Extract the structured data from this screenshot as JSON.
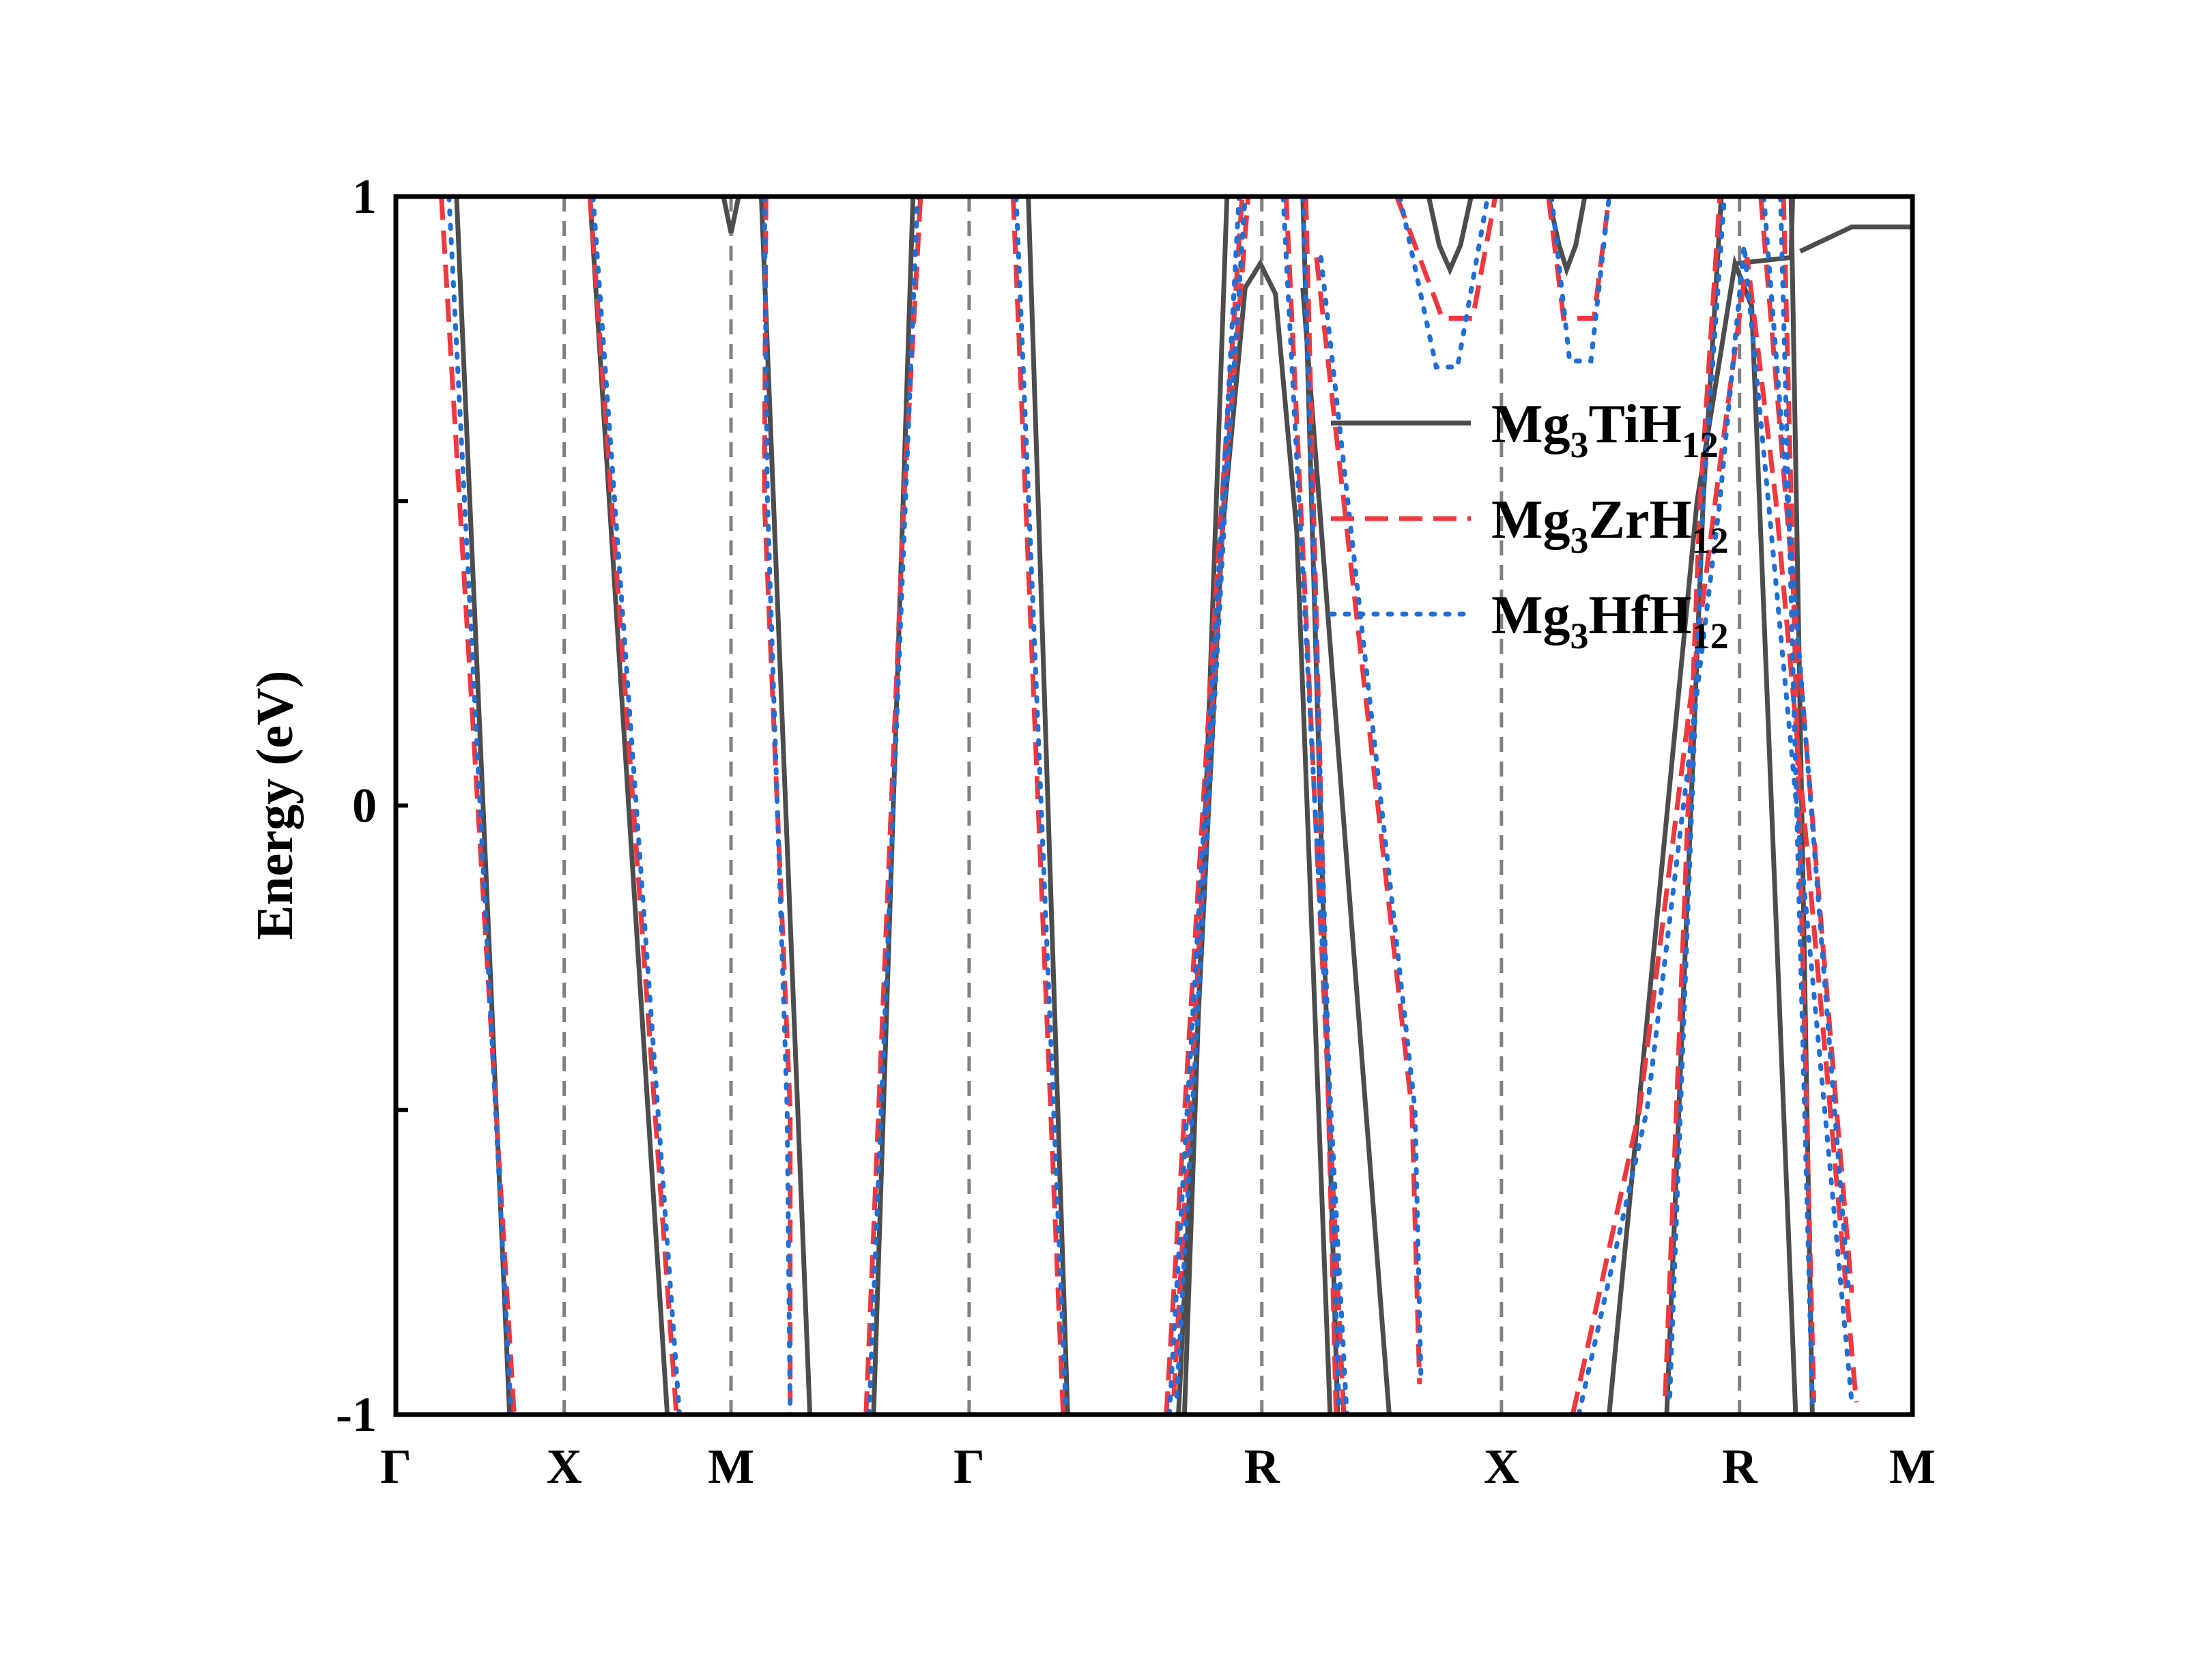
{
  "chart_data": {
    "type": "line",
    "ylabel": "Energy (eV)",
    "ylim": [
      -1,
      1
    ],
    "y_ticks": [
      {
        "value": 1,
        "label": "1"
      },
      {
        "value": 0.5,
        "label": ""
      },
      {
        "value": 0,
        "label": "0"
      },
      {
        "value": -0.5,
        "label": ""
      },
      {
        "value": -1,
        "label": "-1"
      }
    ],
    "xlim": [
      0,
      1
    ],
    "high_symmetry_points": [
      {
        "label": "Γ",
        "x": 0.0
      },
      {
        "label": "X",
        "x": 0.111
      },
      {
        "label": "M",
        "x": 0.221
      },
      {
        "label": "Γ",
        "x": 0.378
      },
      {
        "label": "R",
        "x": 0.571
      },
      {
        "label": "X",
        "x": 0.729
      },
      {
        "label": "R",
        "x": 0.886
      },
      {
        "label": "M",
        "x": 1.0
      }
    ],
    "legend_position": "top-right",
    "series": [
      {
        "name": "Mg3TiH12",
        "name_parts": [
          "Mg",
          "3",
          "TiH",
          "12"
        ],
        "color": "#4d4d4d",
        "style": "solid",
        "bands": [
          [
            [
              0.04,
              1.0
            ],
            [
              0.075,
              -1.0
            ]
          ],
          [
            [
              0.128,
              1.0
            ],
            [
              0.179,
              -1.0
            ]
          ],
          [
            [
              0.241,
              1.0
            ],
            [
              0.273,
              -1.0
            ]
          ],
          [
            [
              0.315,
              -1.0
            ],
            [
              0.341,
              1.0
            ]
          ],
          [
            [
              0.417,
              1.0
            ],
            [
              0.443,
              -1.0
            ]
          ],
          [
            [
              0.216,
              1.0
            ],
            [
              0.221,
              0.94
            ],
            [
              0.226,
              1.0
            ]
          ],
          [
            [
              0.516,
              -1.0
            ],
            [
              0.545,
              0.45
            ],
            [
              0.56,
              0.85
            ],
            [
              0.57,
              0.89
            ],
            [
              0.58,
              0.84
            ],
            [
              0.594,
              0.45
            ],
            [
              0.616,
              -1.0
            ]
          ],
          [
            [
              0.52,
              -1.0
            ],
            [
              0.548,
              1.0
            ]
          ],
          [
            [
              0.598,
              1.0
            ],
            [
              0.621,
              -1.0
            ]
          ],
          [
            [
              0.598,
              0.85
            ],
            [
              0.655,
              -1.0
            ]
          ],
          [
            [
              0.681,
              1.0
            ],
            [
              0.688,
              0.92
            ],
            [
              0.695,
              0.88
            ],
            [
              0.702,
              0.92
            ],
            [
              0.709,
              1.0
            ]
          ],
          [
            [
              0.76,
              1.0
            ],
            [
              0.767,
              0.92
            ],
            [
              0.772,
              0.88
            ],
            [
              0.778,
              0.92
            ],
            [
              0.784,
              1.0
            ]
          ],
          [
            [
              0.8,
              -1.0
            ],
            [
              0.858,
              0.5
            ],
            [
              0.883,
              0.89
            ],
            [
              0.894,
              0.82
            ],
            [
              0.923,
              -1.0
            ]
          ],
          [
            [
              0.838,
              -1.0
            ],
            [
              0.862,
              0.5
            ],
            [
              0.874,
              1.0
            ]
          ],
          [
            [
              0.92,
              1.0
            ],
            [
              0.934,
              -1.0
            ]
          ],
          [
            [
              0.884,
              0.89
            ],
            [
              0.92,
              0.9
            ],
            [
              0.921,
              1.0
            ]
          ],
          [
            [
              0.926,
              0.91
            ],
            [
              0.96,
              0.95
            ],
            [
              1.0,
              0.95
            ]
          ]
        ]
      },
      {
        "name": "Mg3ZrH12",
        "name_parts": [
          "Mg",
          "3",
          "ZrH",
          "12"
        ],
        "color": "#f0383e",
        "style": "dashed",
        "bands": [
          [
            [
              0.03,
              1.0
            ],
            [
              0.078,
              -1.0
            ]
          ],
          [
            [
              0.128,
              1.0
            ],
            [
              0.185,
              -1.0
            ]
          ],
          [
            [
              0.244,
              1.0
            ],
            [
              0.243,
              0.5
            ],
            [
              0.26,
              -0.5
            ],
            [
              0.26,
              -0.98
            ]
          ],
          [
            [
              0.31,
              -1.0
            ],
            [
              0.335,
              0.5
            ],
            [
              0.346,
              1.0
            ]
          ],
          [
            [
              0.407,
              1.0
            ],
            [
              0.44,
              -1.0
            ]
          ],
          [
            [
              0.508,
              -1.0
            ],
            [
              0.542,
              0.4
            ],
            [
              0.558,
              1.0
            ]
          ],
          [
            [
              0.513,
              -0.97
            ],
            [
              0.546,
              0.5
            ],
            [
              0.562,
              1.0
            ]
          ],
          [
            [
              0.6,
              1.0
            ],
            [
              0.62,
              -1.0
            ]
          ],
          [
            [
              0.587,
              1.0
            ],
            [
              0.625,
              -1.0
            ]
          ],
          [
            [
              0.607,
              0.9
            ],
            [
              0.67,
              -0.5
            ],
            [
              0.675,
              -0.95
            ]
          ],
          [
            [
              0.66,
              1.0
            ],
            [
              0.69,
              0.8
            ],
            [
              0.71,
              0.8
            ],
            [
              0.725,
              1.0
            ]
          ],
          [
            [
              0.76,
              1.0
            ],
            [
              0.77,
              0.8
            ],
            [
              0.79,
              0.8
            ],
            [
              0.8,
              1.0
            ]
          ],
          [
            [
              0.776,
              -1.0
            ],
            [
              0.82,
              -0.5
            ],
            [
              0.87,
              0.5
            ],
            [
              0.891,
              0.9
            ],
            [
              0.91,
              0.5
            ],
            [
              0.963,
              -0.98
            ]
          ],
          [
            [
              0.837,
              -0.97
            ],
            [
              0.86,
              0.5
            ],
            [
              0.873,
              1.0
            ]
          ],
          [
            [
              0.915,
              1.0
            ],
            [
              0.935,
              -0.98
            ]
          ],
          [
            [
              0.9,
              1.0
            ],
            [
              0.96,
              -0.8
            ]
          ]
        ]
      },
      {
        "name": "Mg3HfH12",
        "name_parts": [
          "Mg",
          "3",
          "HfH",
          "12"
        ],
        "color": "#1f6fd6",
        "style": "dotted",
        "bands": [
          [
            [
              0.035,
              1.0
            ],
            [
              0.076,
              -1.0
            ]
          ],
          [
            [
              0.13,
              1.0
            ],
            [
              0.187,
              -1.0
            ]
          ],
          [
            [
              0.243,
              1.0
            ],
            [
              0.245,
              0.5
            ],
            [
              0.258,
              -0.5
            ],
            [
              0.26,
              -1.0
            ]
          ],
          [
            [
              0.312,
              -1.0
            ],
            [
              0.336,
              0.5
            ],
            [
              0.344,
              1.0
            ]
          ],
          [
            [
              0.409,
              1.0
            ],
            [
              0.442,
              -1.0
            ]
          ],
          [
            [
              0.51,
              -1.0
            ],
            [
              0.543,
              0.4
            ],
            [
              0.556,
              1.0
            ]
          ],
          [
            [
              0.515,
              -0.97
            ],
            [
              0.547,
              0.5
            ],
            [
              0.56,
              1.0
            ]
          ],
          [
            [
              0.598,
              1.0
            ],
            [
              0.622,
              -1.0
            ]
          ],
          [
            [
              0.585,
              1.0
            ],
            [
              0.627,
              -1.0
            ]
          ],
          [
            [
              0.61,
              0.9
            ],
            [
              0.672,
              -0.5
            ],
            [
              0.676,
              -0.95
            ]
          ],
          [
            [
              0.662,
              1.0
            ],
            [
              0.686,
              0.72
            ],
            [
              0.7,
              0.72
            ],
            [
              0.72,
              1.0
            ]
          ],
          [
            [
              0.762,
              1.0
            ],
            [
              0.774,
              0.73
            ],
            [
              0.788,
              0.73
            ],
            [
              0.8,
              1.0
            ]
          ],
          [
            [
              0.78,
              -1.0
            ],
            [
              0.825,
              -0.5
            ],
            [
              0.873,
              0.5
            ],
            [
              0.889,
              0.92
            ],
            [
              0.905,
              0.5
            ],
            [
              0.96,
              -0.98
            ]
          ],
          [
            [
              0.84,
              -0.97
            ],
            [
              0.862,
              0.5
            ],
            [
              0.876,
              1.0
            ]
          ],
          [
            [
              0.913,
              1.0
            ],
            [
              0.934,
              -0.98
            ]
          ],
          [
            [
              0.902,
              1.0
            ],
            [
              0.958,
              -0.8
            ]
          ]
        ]
      }
    ]
  }
}
